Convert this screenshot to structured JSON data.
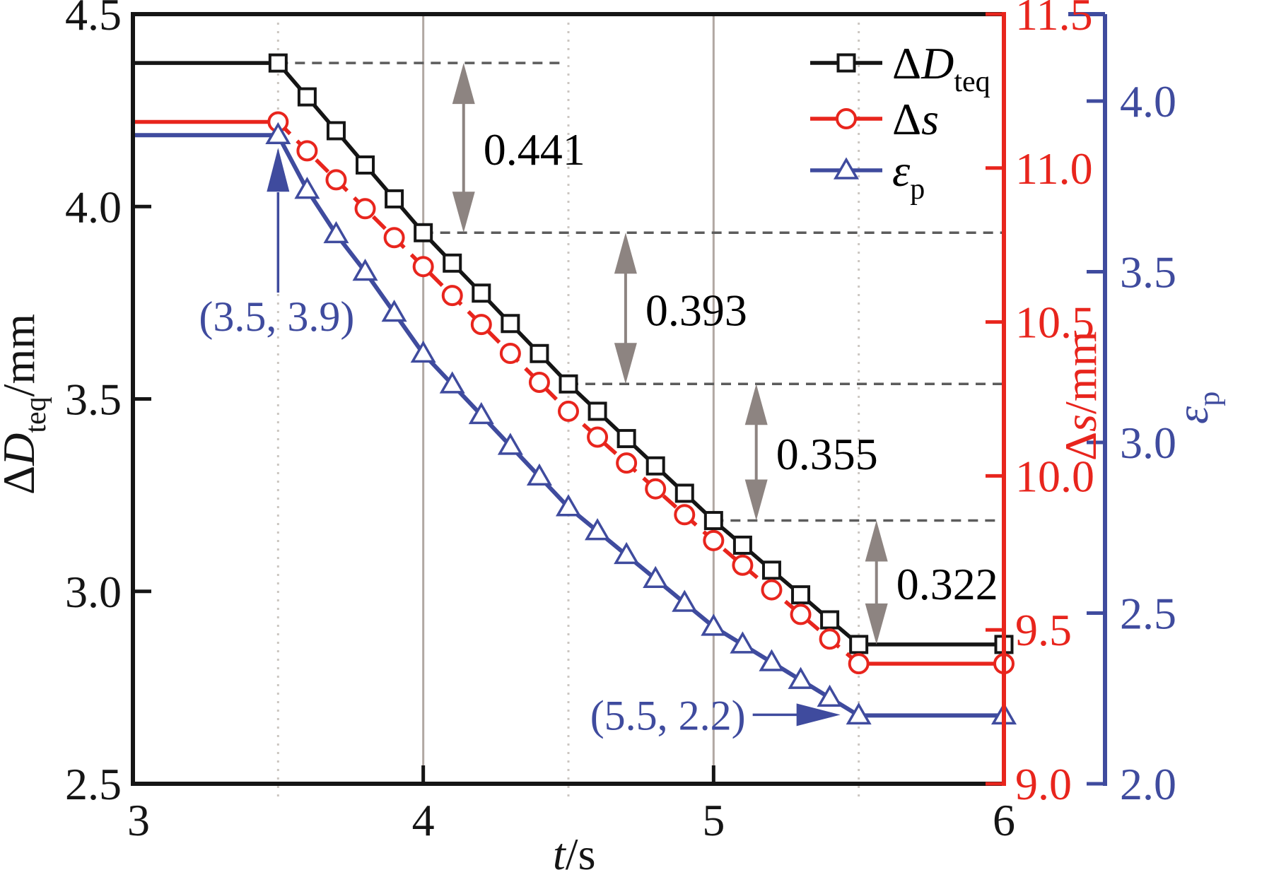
{
  "colors": {
    "black": "#151515",
    "red": "#e8251d",
    "blue": "#3f4b9e",
    "gray_arrow": "#8d8481",
    "dashed_level": "#5c5c5c",
    "grid_solid": "#b1a8a2",
    "grid_dotted": "#cbc6c1",
    "background": "#ffffff"
  },
  "chart_data": {
    "type": "line",
    "title": "",
    "xlabel": {
      "italic": "t",
      "unit": "/s"
    },
    "x_axis": {
      "range": [
        3,
        6
      ],
      "ticks": [
        3,
        4,
        5,
        6
      ],
      "tick_labels": [
        "3",
        "4",
        "5",
        "6"
      ],
      "solid_gridlines": [
        4,
        5
      ],
      "dotted_gridlines": [
        3.5,
        4.5,
        5.5
      ]
    },
    "axes": {
      "left": {
        "label": {
          "delta": "Δ",
          "italic": "D",
          "sub": "teq",
          "unit": "/mm"
        },
        "range": [
          2.5,
          4.5
        ],
        "ticks": [
          2.5,
          3.0,
          3.5,
          4.0,
          4.5
        ],
        "tick_labels": [
          "2.5",
          "3.0",
          "3.5",
          "4.0",
          "4.5"
        ],
        "color": "#151515"
      },
      "right_inner": {
        "label": {
          "delta": "Δ",
          "italic": "s",
          "sub": "",
          "unit": "/mm"
        },
        "range": [
          9.0,
          11.5
        ],
        "ticks": [
          9.0,
          9.5,
          10.0,
          10.5,
          11.0,
          11.5
        ],
        "tick_labels": [
          "9.0",
          "9.5",
          "10.0",
          "10.5",
          "11.0",
          "11.5"
        ],
        "color": "#e8251d"
      },
      "right_outer": {
        "label": {
          "delta": "",
          "italic": "ε",
          "sub": "p",
          "unit": ""
        },
        "range": [
          2.0,
          4.255
        ],
        "ticks": [
          2.0,
          2.5,
          3.0,
          3.5,
          4.0
        ],
        "tick_labels": [
          "2.0",
          "2.5",
          "3.0",
          "3.5",
          "4.0"
        ],
        "color": "#3f4b9e"
      }
    },
    "series": [
      {
        "name": "ΔD_teq",
        "axis": "left",
        "marker": "square",
        "line": "solid",
        "color": "#151515",
        "x": [
          3.0,
          3.5,
          3.6,
          3.7,
          3.8,
          3.9,
          4.0,
          4.1,
          4.2,
          4.3,
          4.4,
          4.5,
          4.6,
          4.7,
          4.8,
          4.9,
          5.0,
          5.1,
          5.2,
          5.3,
          5.4,
          5.5,
          6.0
        ],
        "y": [
          4.373,
          4.373,
          4.285,
          4.197,
          4.108,
          4.02,
          3.932,
          3.853,
          3.775,
          3.696,
          3.618,
          3.539,
          3.468,
          3.397,
          3.326,
          3.255,
          3.184,
          3.12,
          3.055,
          2.991,
          2.926,
          2.862,
          2.862
        ]
      },
      {
        "name": "Δs",
        "axis": "right_inner",
        "marker": "circle",
        "line": "dashed",
        "color": "#e8251d",
        "x": [
          3.0,
          3.5,
          3.6,
          3.7,
          3.8,
          3.9,
          4.0,
          4.1,
          4.2,
          4.3,
          4.4,
          4.5,
          4.6,
          4.7,
          4.8,
          4.9,
          5.0,
          5.1,
          5.2,
          5.3,
          5.4,
          5.5,
          6.0
        ],
        "y": [
          11.15,
          11.15,
          11.056,
          10.962,
          10.868,
          10.774,
          10.68,
          10.586,
          10.492,
          10.398,
          10.304,
          10.21,
          10.126,
          10.042,
          9.958,
          9.874,
          9.79,
          9.71,
          9.63,
          9.55,
          9.47,
          9.39,
          9.39
        ]
      },
      {
        "name": "ε_p",
        "axis": "right_outer",
        "marker": "triangle",
        "line": "solid",
        "color": "#3f4b9e",
        "x": [
          3.0,
          3.5,
          3.6,
          3.7,
          3.8,
          3.9,
          4.0,
          4.1,
          4.2,
          4.3,
          4.4,
          4.5,
          4.6,
          4.7,
          4.8,
          4.9,
          5.0,
          5.1,
          5.2,
          5.3,
          5.4,
          5.5,
          6.0
        ],
        "y": [
          3.9,
          3.9,
          3.74,
          3.61,
          3.5,
          3.38,
          3.26,
          3.17,
          3.08,
          2.99,
          2.9,
          2.81,
          2.74,
          2.67,
          2.6,
          2.53,
          2.46,
          2.408,
          2.356,
          2.304,
          2.252,
          2.2,
          2.2
        ]
      }
    ],
    "legend": [
      {
        "delta": "Δ",
        "italic": "D",
        "sub": "teq",
        "marker": "square",
        "color": "#151515"
      },
      {
        "delta": "Δ",
        "italic": "s",
        "sub": "",
        "marker": "circle",
        "color": "#e8251d"
      },
      {
        "delta": "",
        "italic": "ε",
        "sub": "p",
        "marker": "triangle",
        "color": "#3f4b9e"
      }
    ],
    "annotations": {
      "dashed_levels": [
        {
          "v": 4.373,
          "t0": 3.5,
          "t1": 4.49
        },
        {
          "v": 3.932,
          "t0": 4.0,
          "t1": 6.0
        },
        {
          "v": 3.539,
          "t0": 4.5,
          "t1": 6.0
        },
        {
          "v": 3.184,
          "t0": 5.0,
          "t1": 6.0
        }
      ],
      "gap_arrows": [
        {
          "label": "0.441",
          "t": 4.139,
          "v_top": 4.373,
          "v_bottom": 3.932
        },
        {
          "label": "0.393",
          "t": 4.697,
          "v_top": 3.932,
          "v_bottom": 3.539
        },
        {
          "label": "0.355",
          "t": 5.147,
          "v_top": 3.539,
          "v_bottom": 3.184
        },
        {
          "label": "0.322",
          "t": 5.561,
          "v_top": 3.184,
          "v_bottom": 2.862
        }
      ],
      "point_labels": [
        {
          "text": "(3.5, 3.9)",
          "t": 3.5,
          "v": 3.9,
          "dir": "up"
        },
        {
          "text": "(5.5, 2.2)",
          "t": 5.5,
          "v": 2.2,
          "dir": "right"
        }
      ]
    }
  }
}
